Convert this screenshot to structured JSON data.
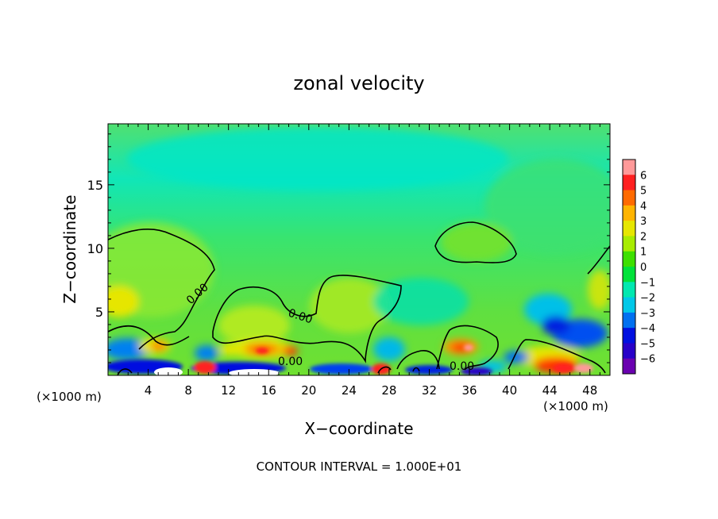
{
  "chart_data": {
    "type": "heatmap",
    "title": "zonal velocity",
    "xlabel": "X−coordinate",
    "ylabel": "Z−coordinate",
    "x_unit_left": "(×1000 m)",
    "x_unit_right": "(×1000 m)",
    "xlim": [
      0,
      50
    ],
    "ylim": [
      0,
      19.8
    ],
    "x_ticks": [
      4,
      8,
      12,
      16,
      20,
      24,
      28,
      32,
      36,
      40,
      44,
      48
    ],
    "y_ticks": [
      5,
      10,
      15
    ],
    "colorbar": {
      "min": -6,
      "max": 6,
      "labels": [
        "6",
        "5",
        "4",
        "3",
        "2",
        "1",
        "0",
        "−1",
        "−2",
        "−3",
        "−4",
        "−5",
        "−6"
      ],
      "colors": [
        "#ff9999",
        "#ff2020",
        "#ff6a00",
        "#ffb400",
        "#e6e600",
        "#a8ec00",
        "#3ee000",
        "#00e23a",
        "#00e8b0",
        "#00c8e8",
        "#0070f0",
        "#0010e0",
        "#2800c8",
        "#6a00b0"
      ]
    },
    "contour_levels": [
      0
    ],
    "contour_labels": [
      "0.00",
      "0.00",
      "0.00",
      "0.00"
    ],
    "footer": "CONTOUR INTERVAL = 1.000E+01"
  }
}
